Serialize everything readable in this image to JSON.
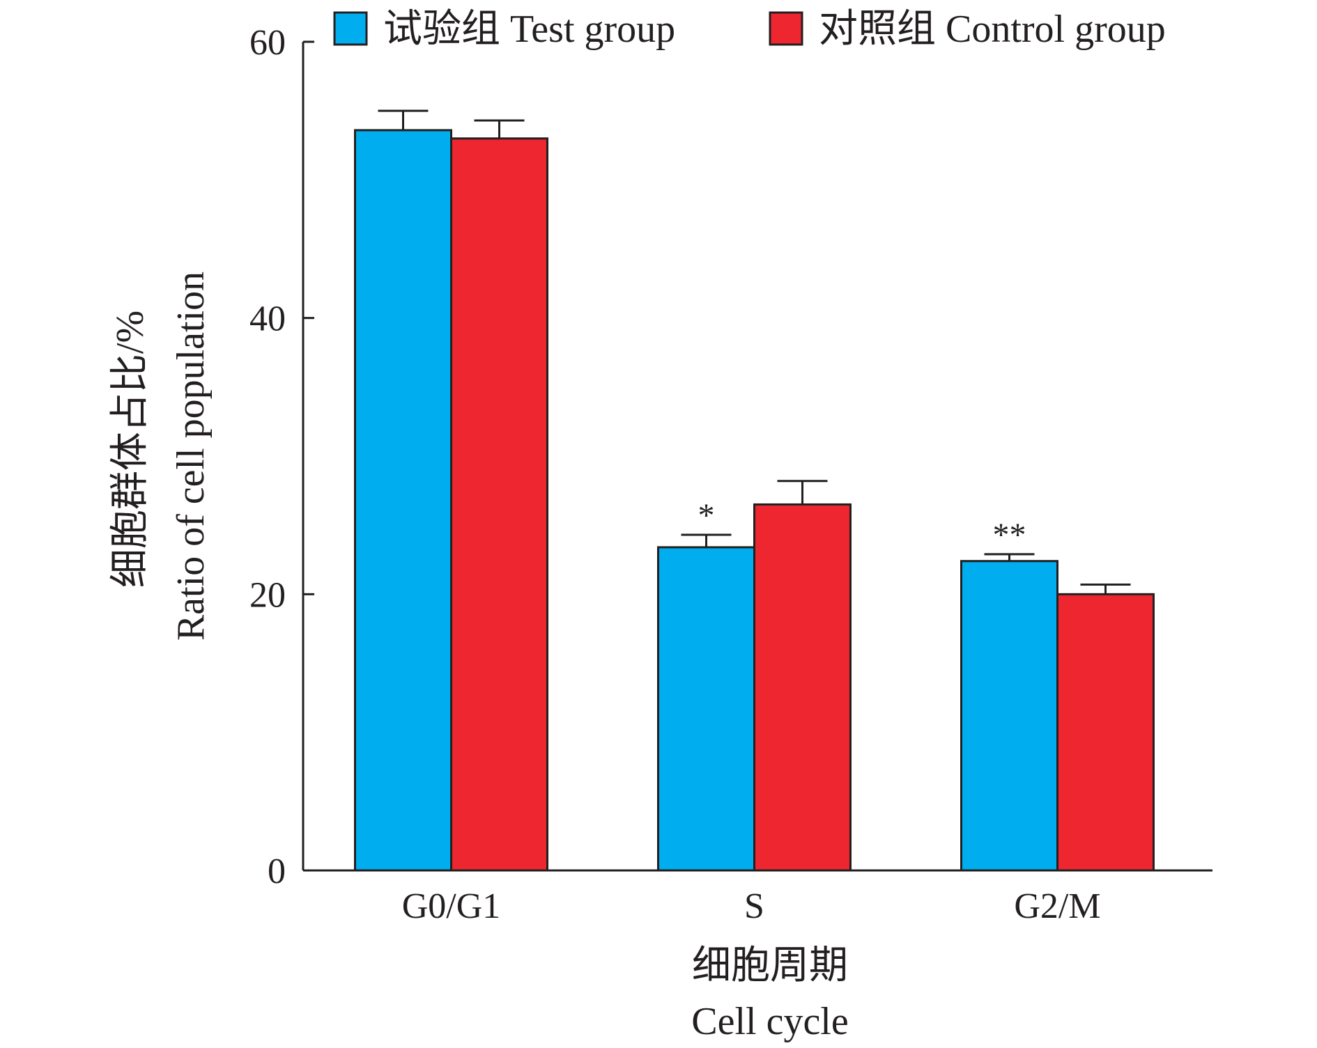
{
  "chart_data": {
    "type": "bar",
    "categories": [
      "G0/G1",
      "S",
      "G2/M"
    ],
    "series": [
      {
        "name": "试验组 Test group",
        "color": "#00aeef",
        "values": [
          53.6,
          23.4,
          22.4
        ],
        "errors": [
          1.4,
          0.9,
          0.5
        ],
        "annotations": [
          "",
          "*",
          "**"
        ]
      },
      {
        "name": "对照组 Control group",
        "color": "#ed2630",
        "values": [
          53.0,
          26.5,
          20.0
        ],
        "errors": [
          1.3,
          1.7,
          0.7
        ],
        "annotations": [
          "",
          "",
          ""
        ]
      }
    ],
    "ylim": [
      0,
      60
    ],
    "yticks": [
      "0",
      "20",
      "40",
      "60"
    ],
    "ylabel_cn": "细胞群体占比/%",
    "ylabel_en": "Ratio of cell population",
    "xlabel_cn": "细胞周期",
    "xlabel_en": "Cell cycle",
    "legend_position": "top",
    "grid": false
  }
}
